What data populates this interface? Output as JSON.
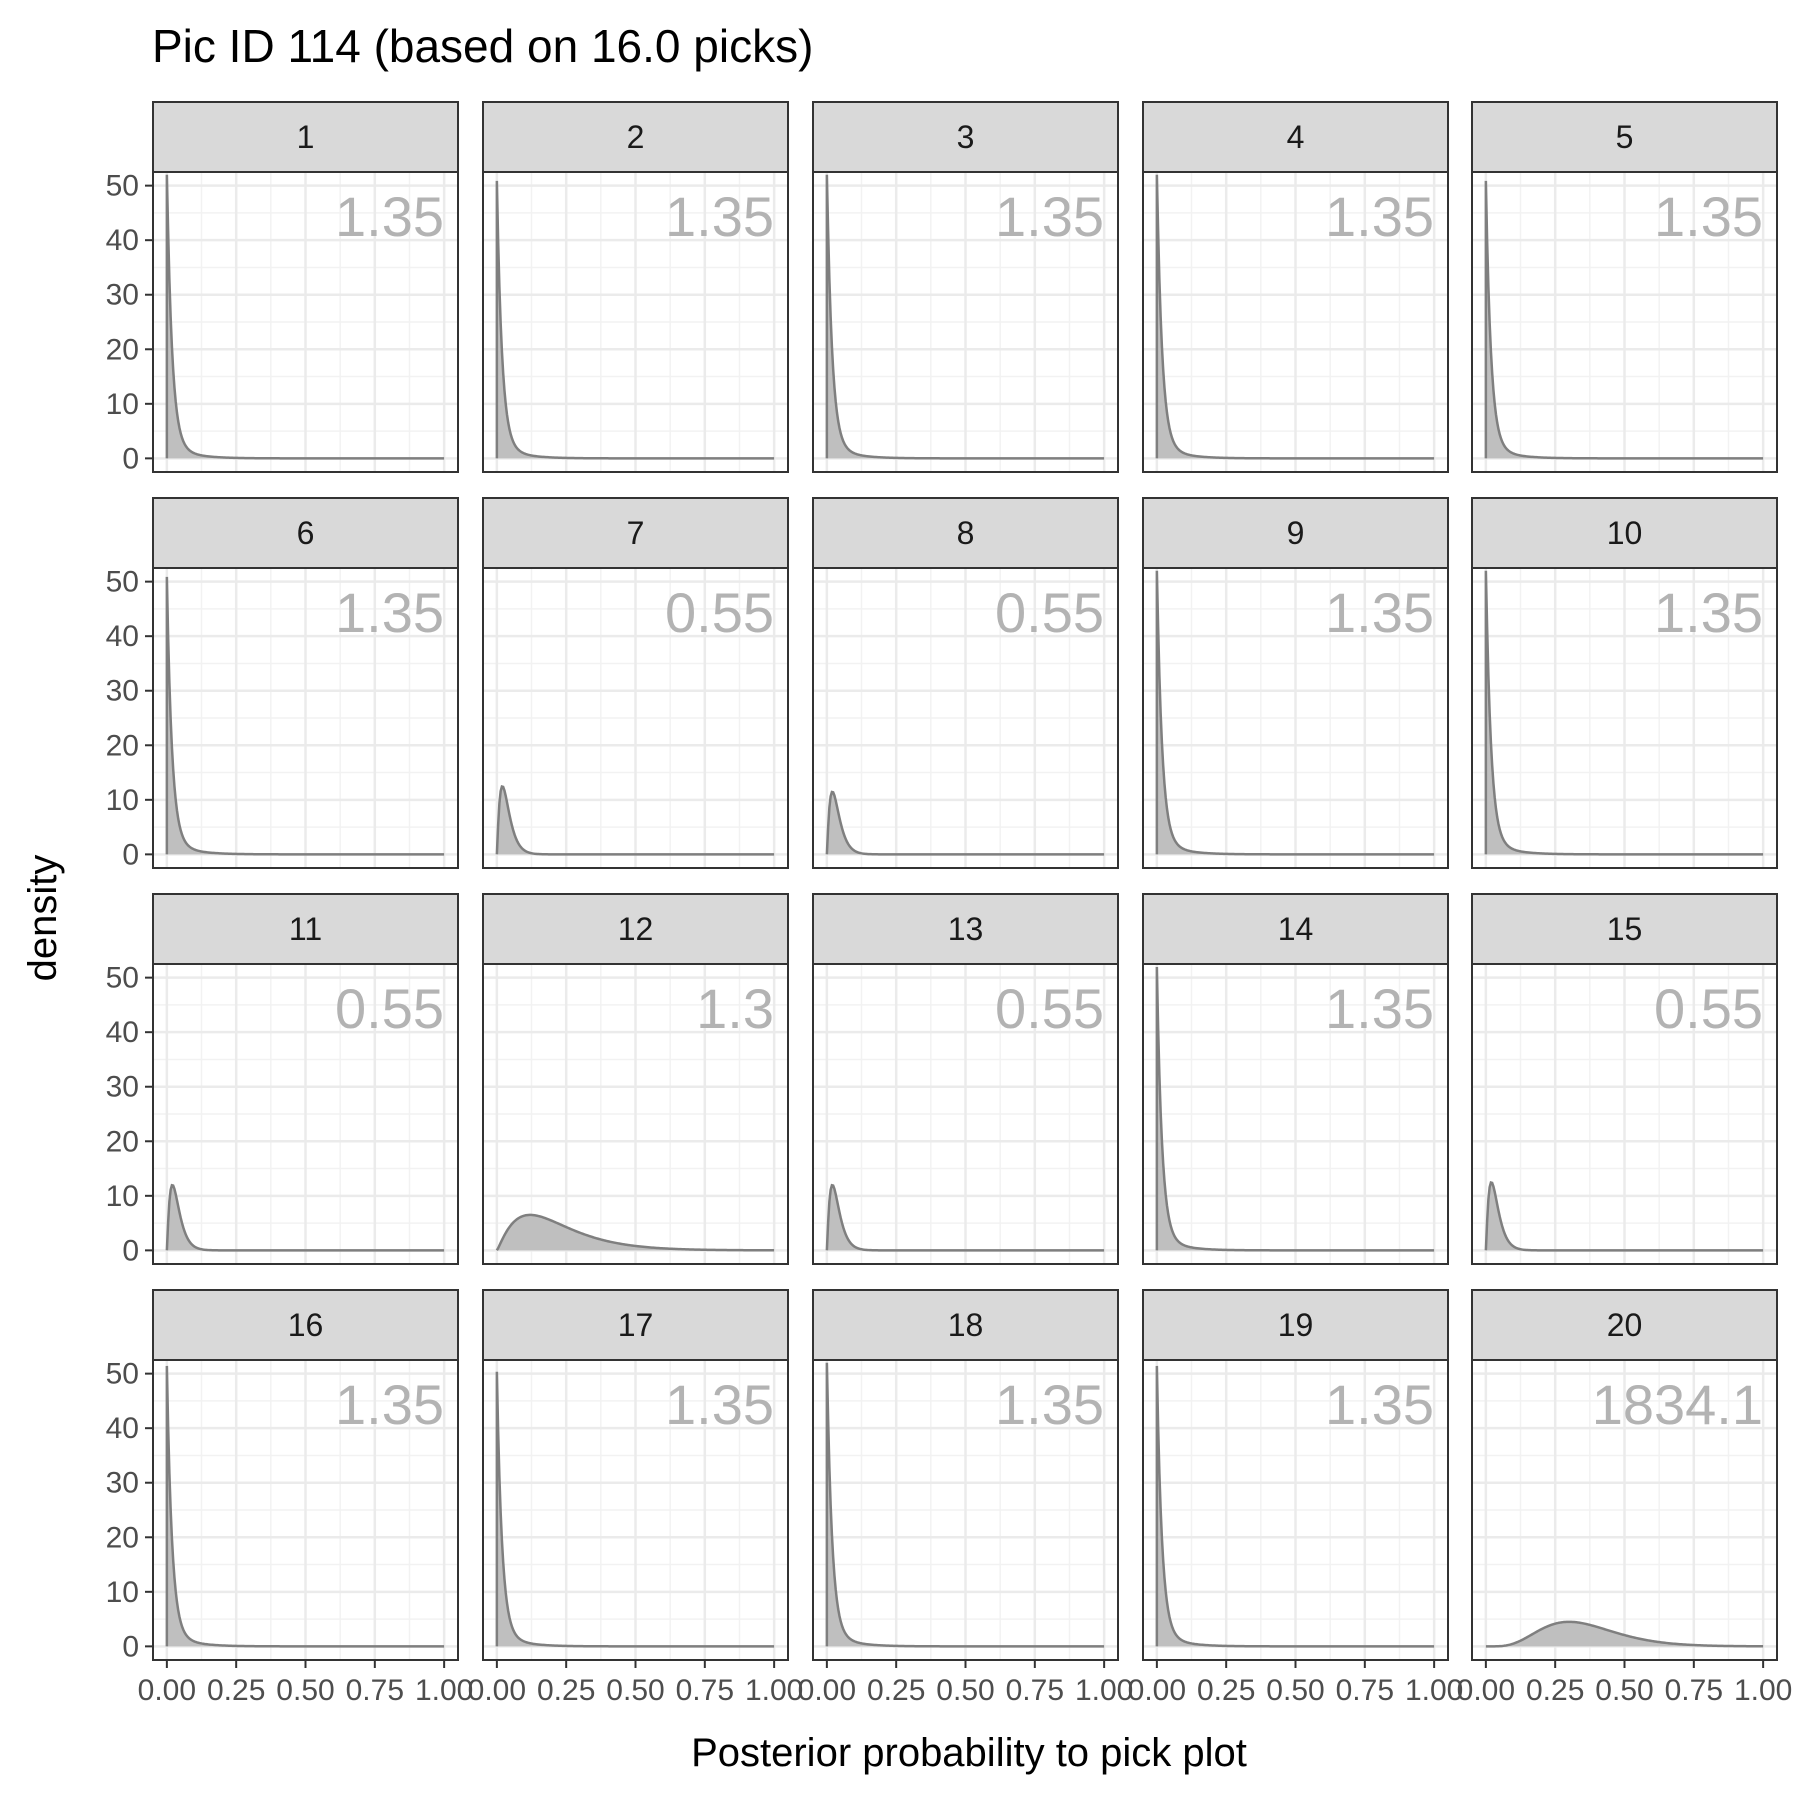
{
  "chart_data": {
    "type": "area",
    "title": "Pic ID 114 (based on 16.0 picks)",
    "xlabel": "Posterior probability to pick plot",
    "ylabel": "density",
    "xlim": [
      -0.05,
      1.05
    ],
    "ylim": [
      -2.5,
      52.5
    ],
    "x_ticks": [
      0.0,
      0.25,
      0.5,
      0.75,
      1.0
    ],
    "x_tick_labels": [
      "0.00",
      "0.25",
      "0.50",
      "0.75",
      "1.00"
    ],
    "y_ticks": [
      0,
      10,
      20,
      30,
      40,
      50
    ],
    "y_tick_labels": [
      "0",
      "10",
      "20",
      "30",
      "40",
      "50"
    ],
    "grid": true,
    "fill_color": "#bfbfbf",
    "line_color": "#7f7f7f",
    "annotation_color": "#b3b3b3",
    "panels": [
      {
        "label": "1",
        "annotation": "1.35",
        "peak_x": 0.0,
        "peak_density": 50
      },
      {
        "label": "2",
        "annotation": "1.35",
        "peak_x": 0.0,
        "peak_density": 48
      },
      {
        "label": "3",
        "annotation": "1.35",
        "peak_x": 0.0,
        "peak_density": 50
      },
      {
        "label": "4",
        "annotation": "1.35",
        "peak_x": 0.0,
        "peak_density": 50
      },
      {
        "label": "5",
        "annotation": "1.35",
        "peak_x": 0.0,
        "peak_density": 48
      },
      {
        "label": "6",
        "annotation": "1.35",
        "peak_x": 0.0,
        "peak_density": 48
      },
      {
        "label": "7",
        "annotation": "0.55",
        "peak_x": 0.02,
        "peak_density": 12.5
      },
      {
        "label": "8",
        "annotation": "0.55",
        "peak_x": 0.02,
        "peak_density": 11.5
      },
      {
        "label": "9",
        "annotation": "1.35",
        "peak_x": 0.0,
        "peak_density": 50
      },
      {
        "label": "10",
        "annotation": "1.35",
        "peak_x": 0.0,
        "peak_density": 50
      },
      {
        "label": "11",
        "annotation": "0.55",
        "peak_x": 0.02,
        "peak_density": 12
      },
      {
        "label": "12",
        "annotation": "1.3",
        "peak_x": 0.12,
        "peak_density": 6.5
      },
      {
        "label": "13",
        "annotation": "0.55",
        "peak_x": 0.02,
        "peak_density": 12
      },
      {
        "label": "14",
        "annotation": "1.35",
        "peak_x": 0.0,
        "peak_density": 49
      },
      {
        "label": "15",
        "annotation": "0.55",
        "peak_x": 0.02,
        "peak_density": 12.5
      },
      {
        "label": "16",
        "annotation": "1.35",
        "peak_x": 0.0,
        "peak_density": 48.5
      },
      {
        "label": "17",
        "annotation": "1.35",
        "peak_x": 0.0,
        "peak_density": 47.5
      },
      {
        "label": "18",
        "annotation": "1.35",
        "peak_x": 0.0,
        "peak_density": 50
      },
      {
        "label": "19",
        "annotation": "1.35",
        "peak_x": 0.0,
        "peak_density": 48.5
      },
      {
        "label": "20",
        "annotation": "1834.1",
        "peak_x": 0.3,
        "peak_density": 4.5
      }
    ]
  }
}
